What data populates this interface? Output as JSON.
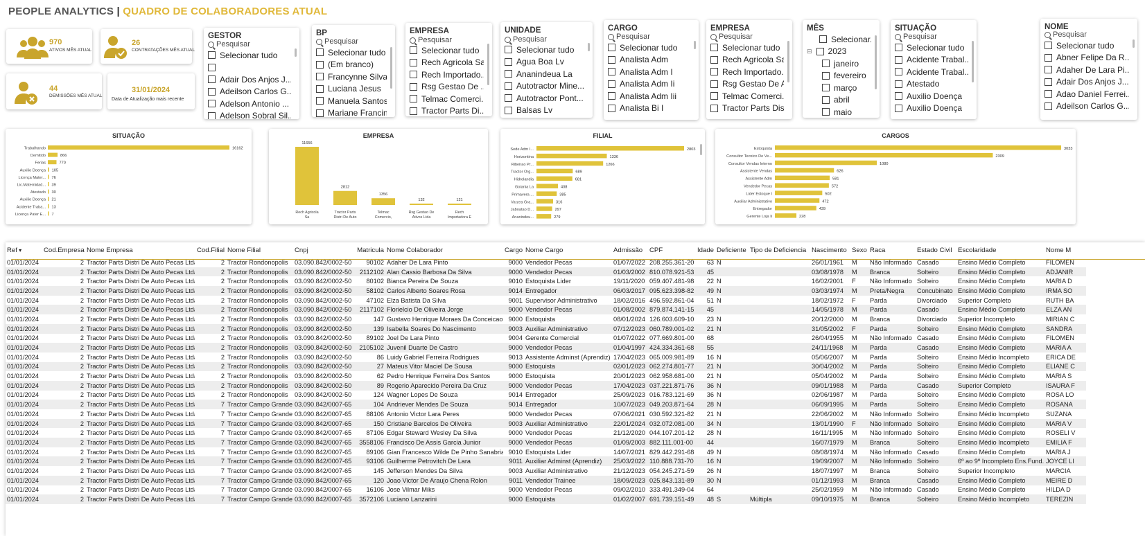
{
  "header": {
    "title_a": "PEOPLE ANALYTICS",
    "title_sep": "|",
    "title_b": "QUADRO DE COLABORADORES ATUAL"
  },
  "kpis": {
    "ativos": {
      "value": "970",
      "label": "ATIVOS MÊS ATUAL"
    },
    "contratacoes": {
      "value": "26",
      "label": "CONTRATAÇÕES MÊS ATUAL"
    },
    "demissoes": {
      "value": "44",
      "label": "DEMISSÕES MÊS ATUAL"
    },
    "atualizacao": {
      "value": "31/01/2024",
      "label": "Data de Atualização mais recente"
    }
  },
  "search_placeholder": "Pesquisar",
  "slicers": {
    "gestor": {
      "title": "GESTOR",
      "items": [
        "Selecionar tudo",
        "",
        "Adair Dos Anjos J...",
        "Adeilson Carlos G...",
        "Adelson Antonio ...",
        "Adelson Sobral Sil..."
      ]
    },
    "bp": {
      "title": "BP",
      "items": [
        "Selecionar tudo",
        "(Em branco)",
        "Francynne Silva",
        "Luciana Jesus",
        "Manuela Santos",
        "Mariane Francini"
      ]
    },
    "empresa1": {
      "title": "EMPRESA",
      "items": [
        "Selecionar tudo",
        "Rech Agricola Sa",
        "Rech Importado...",
        "Rsg Gestao De ...",
        "Telmac Comerci...",
        "Tractor Parts Di..."
      ]
    },
    "unidade": {
      "title": "UNIDADE",
      "items": [
        "Selecionar tudo",
        "Agua Boa Lv",
        "Ananindeua La",
        "Autotractor Mine...",
        "Autotractor Pont...",
        "Balsas Lv"
      ]
    },
    "cargo": {
      "title": "CARGO",
      "items": [
        "Selecionar tudo",
        "Analista Adm",
        "Analista Adm I",
        "Analista Adm Ii",
        "Analista Adm Iii",
        "Analista Bi I"
      ]
    },
    "empresa2": {
      "title": "EMPRESA",
      "items": [
        "Selecionar tudo",
        "Rech Agricola Sa",
        "Rech Importado...",
        "Rsg Gestao De A...",
        "Telmac Comerci...",
        "Tractor Parts Dis..."
      ]
    },
    "mes": {
      "title": "MÊS",
      "items": [
        "Selecionar...",
        "2023",
        "janeiro",
        "fevereiro",
        "março",
        "abril",
        "maio"
      ]
    },
    "situacao": {
      "title": "SITUAÇÃO",
      "items": [
        "Selecionar tudo",
        "Acidente Trabal...",
        "Acidente Trabal...",
        "Atestado",
        "Auxilio Doença",
        "Auxilio Doença"
      ]
    },
    "nome": {
      "title": "NOME",
      "items": [
        "Selecionar tudo",
        "Abner Felipe Da R...",
        "Adaher De Lara Pi...",
        "Adair Dos Anjos J...",
        "Adao Daniel Ferrei...",
        "Adeilson Carlos G..."
      ]
    }
  },
  "charts": {
    "situacao": {
      "title": "SITUAÇÃO"
    },
    "empresa": {
      "title": "EMPRESA"
    },
    "filial": {
      "title": "FILIAL"
    },
    "cargos": {
      "title": "CARGOS"
    }
  },
  "chart_data": [
    {
      "type": "bar",
      "orientation": "horizontal",
      "title": "SITUAÇÃO",
      "categories": [
        "Trabalhando",
        "Demitido",
        "Ferias",
        "Auxilio Doença",
        "Licença Mater...",
        "Lic.Maternidad...",
        "Atestado",
        "Auxilio Doença",
        "Acidente Traba...",
        "Licença Pater E..."
      ],
      "values": [
        16162,
        866,
        770,
        105,
        76,
        39,
        30,
        21,
        13,
        7
      ]
    },
    {
      "type": "bar",
      "orientation": "vertical",
      "title": "EMPRESA",
      "categories": [
        "Rech Agricola Sa",
        "Tractor Parts Distri De Auto ...",
        "Telmac Comercio, Importacao E E...",
        "Rsg Gestao De Ativos Ltda",
        "Rech Importadora E ..."
      ],
      "values": [
        11656,
        2812,
        1356,
        132,
        121
      ]
    },
    {
      "type": "bar",
      "orientation": "horizontal",
      "title": "FILIAL",
      "categories": [
        "Sede Adm I...",
        "Horizontina",
        "Ribeirao Pr...",
        "Tractor Org...",
        "Hidrolandia",
        "Goiania La",
        "Primavera ...",
        "Varzea Gra...",
        "Jaboatao D...",
        "Ananindeu..."
      ],
      "values": [
        2803,
        1336,
        1266,
        689,
        681,
        408,
        385,
        316,
        297,
        279
      ]
    },
    {
      "type": "bar",
      "orientation": "horizontal",
      "title": "CARGOS",
      "categories": [
        "Estoquista",
        "Consultor Tecnico De Ve...",
        "Consultor Vendas Interno",
        "Assistente Vendas",
        "Assistente Adm",
        "Vendedor Pecas",
        "Lider Estoque I",
        "Auxiliar Administrativo",
        "Entregador",
        "Gerente Loja Ii"
      ],
      "values": [
        3033,
        2309,
        1080,
        626,
        581,
        572,
        502,
        472,
        439,
        228
      ]
    }
  ],
  "table": {
    "columns": [
      "Ref",
      "Cod.Empresa",
      "Nome Empresa",
      "Cod.Filial",
      "Nome Filial",
      "Cnpj",
      "Matricula",
      "Nome Colaborador",
      "Cargo",
      "Nome Cargo",
      "Admissão",
      "CPF",
      "Idade",
      "Deficiente",
      "Tipo de Deficiencia",
      "Nascimento",
      "Sexo",
      "Raca",
      "Estado Civil",
      "Escolaridade",
      "Nome M"
    ],
    "rows": [
      [
        "01/01/2024",
        "2",
        "Tractor Parts Distri De Auto Pecas Ltda",
        "2",
        "Tractor Rondonopolis",
        "03.090.842/0002-50",
        "90102",
        "Adaher De Lara Pinto",
        "9000",
        "Vendedor Pecas",
        "01/07/2022",
        "208.255.361-20",
        "63",
        "N",
        "",
        "26/01/1961",
        "M",
        "Não Informado",
        "Casado",
        "Ensino Médio Completo",
        "FILOMEN"
      ],
      [
        "01/01/2024",
        "2",
        "Tractor Parts Distri De Auto Pecas Ltda",
        "2",
        "Tractor Rondonopolis",
        "03.090.842/0002-50",
        "2112102",
        "Alan Cassio Barbosa Da Silva",
        "9000",
        "Vendedor Pecas",
        "01/03/2002",
        "810.078.921-53",
        "45",
        "",
        "",
        "03/08/1978",
        "M",
        "Branca",
        "Solteiro",
        "Ensino Médio Completo",
        "ADJANIR"
      ],
      [
        "01/01/2024",
        "2",
        "Tractor Parts Distri De Auto Pecas Ltda",
        "2",
        "Tractor Rondonopolis",
        "03.090.842/0002-50",
        "80102",
        "Bianca Pereira De Souza",
        "9010",
        "Estoquista Lider",
        "19/11/2020",
        "059.407.481-98",
        "22",
        "N",
        "",
        "16/02/2001",
        "F",
        "Não Informado",
        "Solteiro",
        "Ensino Médio Completo",
        "MARIA D"
      ],
      [
        "01/01/2024",
        "2",
        "Tractor Parts Distri De Auto Pecas Ltda",
        "2",
        "Tractor Rondonopolis",
        "03.090.842/0002-50",
        "58102",
        "Carlos Alberto Soares Rosa",
        "9014",
        "Entregador",
        "06/03/2017",
        "095.623.398-82",
        "49",
        "N",
        "",
        "03/03/1974",
        "M",
        "Preta/Negra",
        "Concubinato",
        "Ensino Médio Completo",
        "IRMA SO"
      ],
      [
        "01/01/2024",
        "2",
        "Tractor Parts Distri De Auto Pecas Ltda",
        "2",
        "Tractor Rondonopolis",
        "03.090.842/0002-50",
        "47102",
        "Elza Batista Da Silva",
        "9001",
        "Supervisor Administrativo",
        "18/02/2016",
        "496.592.861-04",
        "51",
        "N",
        "",
        "18/02/1972",
        "F",
        "Parda",
        "Divorciado",
        "Superior Completo",
        "RUTH BA"
      ],
      [
        "01/01/2024",
        "2",
        "Tractor Parts Distri De Auto Pecas Ltda",
        "2",
        "Tractor Rondonopolis",
        "03.090.842/0002-50",
        "2117102",
        "Florielcio De Oliveira Jorge",
        "9000",
        "Vendedor Pecas",
        "01/08/2002",
        "879.874.141-15",
        "45",
        "",
        "",
        "14/05/1978",
        "M",
        "Parda",
        "Casado",
        "Ensino Médio Completo",
        "ELZA AN"
      ],
      [
        "01/01/2024",
        "2",
        "Tractor Parts Distri De Auto Pecas Ltda",
        "2",
        "Tractor Rondonopolis",
        "03.090.842/0002-50",
        "147",
        "Gustavo Henrique Moraes Da Conceicao",
        "9000",
        "Estoquista",
        "08/01/2024",
        "126.603.609-10",
        "23",
        "N",
        "",
        "20/12/2000",
        "M",
        "Branca",
        "Divorciado",
        "Superior Incompleto",
        "MIRIAN C"
      ],
      [
        "01/01/2024",
        "2",
        "Tractor Parts Distri De Auto Pecas Ltda",
        "2",
        "Tractor Rondonopolis",
        "03.090.842/0002-50",
        "139",
        "Isabella Soares Do Nascimento",
        "9003",
        "Auxiliar Administrativo",
        "07/12/2023",
        "060.789.001-02",
        "21",
        "N",
        "",
        "31/05/2002",
        "F",
        "Parda",
        "Solteiro",
        "Ensino Médio Completo",
        "SANDRA"
      ],
      [
        "01/01/2024",
        "2",
        "Tractor Parts Distri De Auto Pecas Ltda",
        "2",
        "Tractor Rondonopolis",
        "03.090.842/0002-50",
        "89102",
        "Joel De Lara Pinto",
        "9004",
        "Gerente Comercial",
        "01/07/2022",
        "077.669.801-00",
        "68",
        "",
        "",
        "26/04/1955",
        "M",
        "Não Informado",
        "Casado",
        "Ensino Médio Completo",
        "FILOMEN"
      ],
      [
        "01/01/2024",
        "2",
        "Tractor Parts Distri De Auto Pecas Ltda",
        "2",
        "Tractor Rondonopolis",
        "03.090.842/0002-50",
        "2105102",
        "Juvenil Duarte De Castro",
        "9000",
        "Vendedor Pecas",
        "01/04/1997",
        "424.334.361-68",
        "55",
        "",
        "",
        "24/11/1968",
        "M",
        "Parda",
        "Casado",
        "Ensino Médio Completo",
        "MARIA A"
      ],
      [
        "01/01/2024",
        "2",
        "Tractor Parts Distri De Auto Pecas Ltda",
        "2",
        "Tractor Rondonopolis",
        "03.090.842/0002-50",
        "86",
        "Luidy Gabriel Ferreira Rodrigues",
        "9013",
        "Assistente Adminst (Aprendiz)",
        "17/04/2023",
        "065.009.981-89",
        "16",
        "N",
        "",
        "05/06/2007",
        "M",
        "Parda",
        "Solteiro",
        "Ensino Médio Incompleto",
        "ERICA DE"
      ],
      [
        "01/01/2024",
        "2",
        "Tractor Parts Distri De Auto Pecas Ltda",
        "2",
        "Tractor Rondonopolis",
        "03.090.842/0002-50",
        "27",
        "Mateus Vitor Maciel De Sousa",
        "9000",
        "Estoquista",
        "02/01/2023",
        "062.274.801-77",
        "21",
        "N",
        "",
        "30/04/2002",
        "M",
        "Parda",
        "Solteiro",
        "Ensino Médio Completo",
        "ELIANE C"
      ],
      [
        "01/01/2024",
        "2",
        "Tractor Parts Distri De Auto Pecas Ltda",
        "2",
        "Tractor Rondonopolis",
        "03.090.842/0002-50",
        "62",
        "Pedro Henrique Ferreira Dos Santos",
        "9000",
        "Estoquista",
        "20/01/2023",
        "062.958.681-00",
        "21",
        "N",
        "",
        "05/04/2002",
        "M",
        "Parda",
        "Solteiro",
        "Ensino Médio Completo",
        "MARIA S"
      ],
      [
        "01/01/2024",
        "2",
        "Tractor Parts Distri De Auto Pecas Ltda",
        "2",
        "Tractor Rondonopolis",
        "03.090.842/0002-50",
        "89",
        "Rogerio Aparecido Pereira Da Cruz",
        "9000",
        "Vendedor Pecas",
        "17/04/2023",
        "037.221.871-76",
        "36",
        "N",
        "",
        "09/01/1988",
        "M",
        "Parda",
        "Casado",
        "Superior Completo",
        "ISAURA F"
      ],
      [
        "01/01/2024",
        "2",
        "Tractor Parts Distri De Auto Pecas Ltda",
        "2",
        "Tractor Rondonopolis",
        "03.090.842/0002-50",
        "124",
        "Wagner Lopes De Souza",
        "9014",
        "Entregador",
        "25/09/2023",
        "016.783.121-69",
        "36",
        "N",
        "",
        "02/06/1987",
        "M",
        "Parda",
        "Solteiro",
        "Ensino Médio Completo",
        "ROSA LO"
      ],
      [
        "01/01/2024",
        "2",
        "Tractor Parts Distri De Auto Pecas Ltda",
        "7",
        "Tractor Campo Grande",
        "03.090.842/0007-65",
        "104",
        "Andriever Mendes De Souza",
        "9014",
        "Entregador",
        "10/07/2023",
        "049.203.871-64",
        "28",
        "N",
        "",
        "06/09/1995",
        "M",
        "Parda",
        "Solteiro",
        "Ensino Médio Completo",
        "ROSANA"
      ],
      [
        "01/01/2024",
        "2",
        "Tractor Parts Distri De Auto Pecas Ltda",
        "7",
        "Tractor Campo Grande",
        "03.090.842/0007-65",
        "88106",
        "Antonio Victor Lara Peres",
        "9000",
        "Vendedor Pecas",
        "07/06/2021",
        "030.592.321-82",
        "21",
        "N",
        "",
        "22/06/2002",
        "M",
        "Não Informado",
        "Solteiro",
        "Ensino Médio Incompleto",
        "SUZANA"
      ],
      [
        "01/01/2024",
        "2",
        "Tractor Parts Distri De Auto Pecas Ltda",
        "7",
        "Tractor Campo Grande",
        "03.090.842/0007-65",
        "150",
        "Cristiane Barcelos De Oliveira",
        "9003",
        "Auxiliar Administrativo",
        "22/01/2024",
        "032.072.081-00",
        "34",
        "N",
        "",
        "13/01/1990",
        "F",
        "Não Informado",
        "Solteiro",
        "Ensino Médio Completo",
        "MARIA V"
      ],
      [
        "01/01/2024",
        "2",
        "Tractor Parts Distri De Auto Pecas Ltda",
        "7",
        "Tractor Campo Grande",
        "03.090.842/0007-65",
        "87106",
        "Edgar Steward Wesley Da Silva",
        "9000",
        "Vendedor Pecas",
        "21/12/2020",
        "044.107.201-12",
        "28",
        "N",
        "",
        "16/11/1995",
        "M",
        "Não Informado",
        "Solteiro",
        "Ensino Médio Completo",
        "ROSELI V"
      ],
      [
        "01/01/2024",
        "2",
        "Tractor Parts Distri De Auto Pecas Ltda",
        "7",
        "Tractor Campo Grande",
        "03.090.842/0007-65",
        "3558106",
        "Francisco De Assis Garcia Junior",
        "9000",
        "Vendedor Pecas",
        "01/09/2003",
        "882.111.001-00",
        "44",
        "",
        "",
        "16/07/1979",
        "M",
        "Branca",
        "Solteiro",
        "Ensino Médio Incompleto",
        "EMILIA F"
      ],
      [
        "01/01/2024",
        "2",
        "Tractor Parts Distri De Auto Pecas Ltda",
        "7",
        "Tractor Campo Grande",
        "03.090.842/0007-65",
        "89106",
        "Gian Francesco Wilde De Pinho Sanabria",
        "9010",
        "Estoquista Lider",
        "14/07/2021",
        "829.442.291-68",
        "49",
        "N",
        "",
        "08/08/1974",
        "M",
        "Não Informado",
        "Casado",
        "Ensino Médio Completo",
        "MARIA J"
      ],
      [
        "01/01/2024",
        "2",
        "Tractor Parts Distri De Auto Pecas Ltda",
        "7",
        "Tractor Campo Grande",
        "03.090.842/0007-65",
        "93106",
        "Guilherme Petrovitch De Lara",
        "9011",
        "Auxiliar Adminst (Aprendiz)",
        "25/03/2022",
        "110.888.731-70",
        "16",
        "N",
        "",
        "19/09/2007",
        "M",
        "Não Informado",
        "Solteiro",
        "6º ao 9º Incompleto Ens.Fund.",
        "JOYCE LI"
      ],
      [
        "01/01/2024",
        "2",
        "Tractor Parts Distri De Auto Pecas Ltda",
        "7",
        "Tractor Campo Grande",
        "03.090.842/0007-65",
        "145",
        "Jefferson Mendes Da Silva",
        "9003",
        "Auxiliar Administrativo",
        "21/12/2023",
        "054.245.271-59",
        "26",
        "N",
        "",
        "18/07/1997",
        "M",
        "Branca",
        "Solteiro",
        "Superior Incompleto",
        "MARCIA"
      ],
      [
        "01/01/2024",
        "2",
        "Tractor Parts Distri De Auto Pecas Ltda",
        "7",
        "Tractor Campo Grande",
        "03.090.842/0007-65",
        "120",
        "Joao Victor De Araujo Chena Rolon",
        "9011",
        "Vendedor Trainee",
        "18/09/2023",
        "025.843.131-89",
        "30",
        "N",
        "",
        "01/12/1993",
        "M",
        "Branca",
        "Casado",
        "Ensino Médio Completo",
        "MEIRE D"
      ],
      [
        "01/01/2024",
        "2",
        "Tractor Parts Distri De Auto Pecas Ltda",
        "7",
        "Tractor Campo Grande",
        "03.090.842/0007-65",
        "16106",
        "Jose Vilmar Miks",
        "9000",
        "Vendedor Pecas",
        "09/02/2010",
        "333.491.349-04",
        "64",
        "",
        "",
        "25/02/1959",
        "M",
        "Não Informado",
        "Casado",
        "Ensino Médio Completo",
        "HILDA D"
      ],
      [
        "01/01/2024",
        "2",
        "Tractor Parts Distri De Auto Pecas Ltda",
        "7",
        "Tractor Campo Grande",
        "03.090.842/0007-65",
        "3572106",
        "Luciano Lanzarini",
        "9000",
        "Estoquista",
        "01/02/2007",
        "691.739.151-49",
        "48",
        "S",
        "Múltipla",
        "09/10/1975",
        "M",
        "Branca",
        "Solteiro",
        "Ensino Médio Incompleto",
        "TEREZIN"
      ]
    ]
  }
}
